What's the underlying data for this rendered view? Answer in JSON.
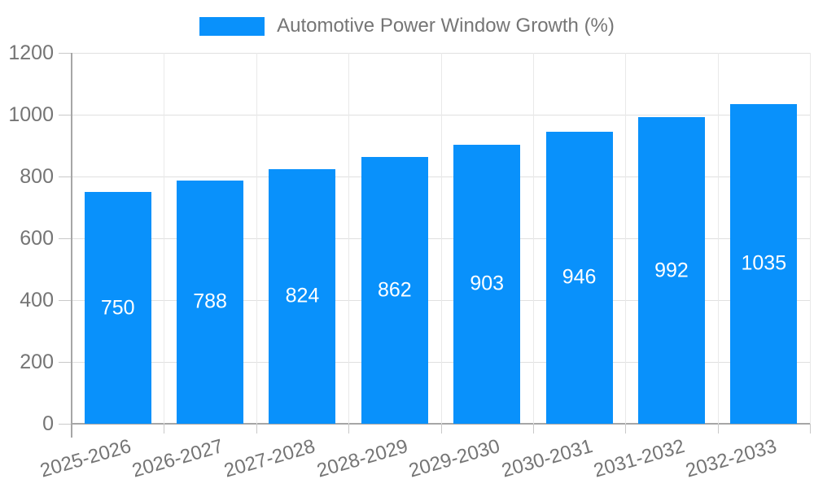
{
  "chart_data": {
    "type": "bar",
    "title": "Automotive Power Window Growth (%)",
    "series_name": "Automotive Power Window Growth (%)",
    "categories": [
      "2025-2026",
      "2026-2027",
      "2027-2028",
      "2028-2029",
      "2029-2030",
      "2030-2031",
      "2031-2032",
      "2032-2033"
    ],
    "values": [
      750,
      788,
      824,
      862,
      903,
      946,
      992,
      1035
    ],
    "xlabel": "",
    "ylabel": "",
    "ylim": [
      0,
      1200
    ],
    "yticks": [
      0,
      200,
      400,
      600,
      800,
      1000,
      1200
    ],
    "grid": true,
    "legend_position": "top-center",
    "value_labels_position": "inside-center",
    "colors": {
      "bar": "#0991fb",
      "value_label_text": "#ffffff",
      "axis_text": "#757575",
      "legend_text": "#757575",
      "gridline_h": "#e0e0e0",
      "gridline_v": "#e9e9e9",
      "axis_line": "#a6a6a6",
      "tick_line": "#c9c9c9",
      "background": "#ffffff"
    }
  }
}
